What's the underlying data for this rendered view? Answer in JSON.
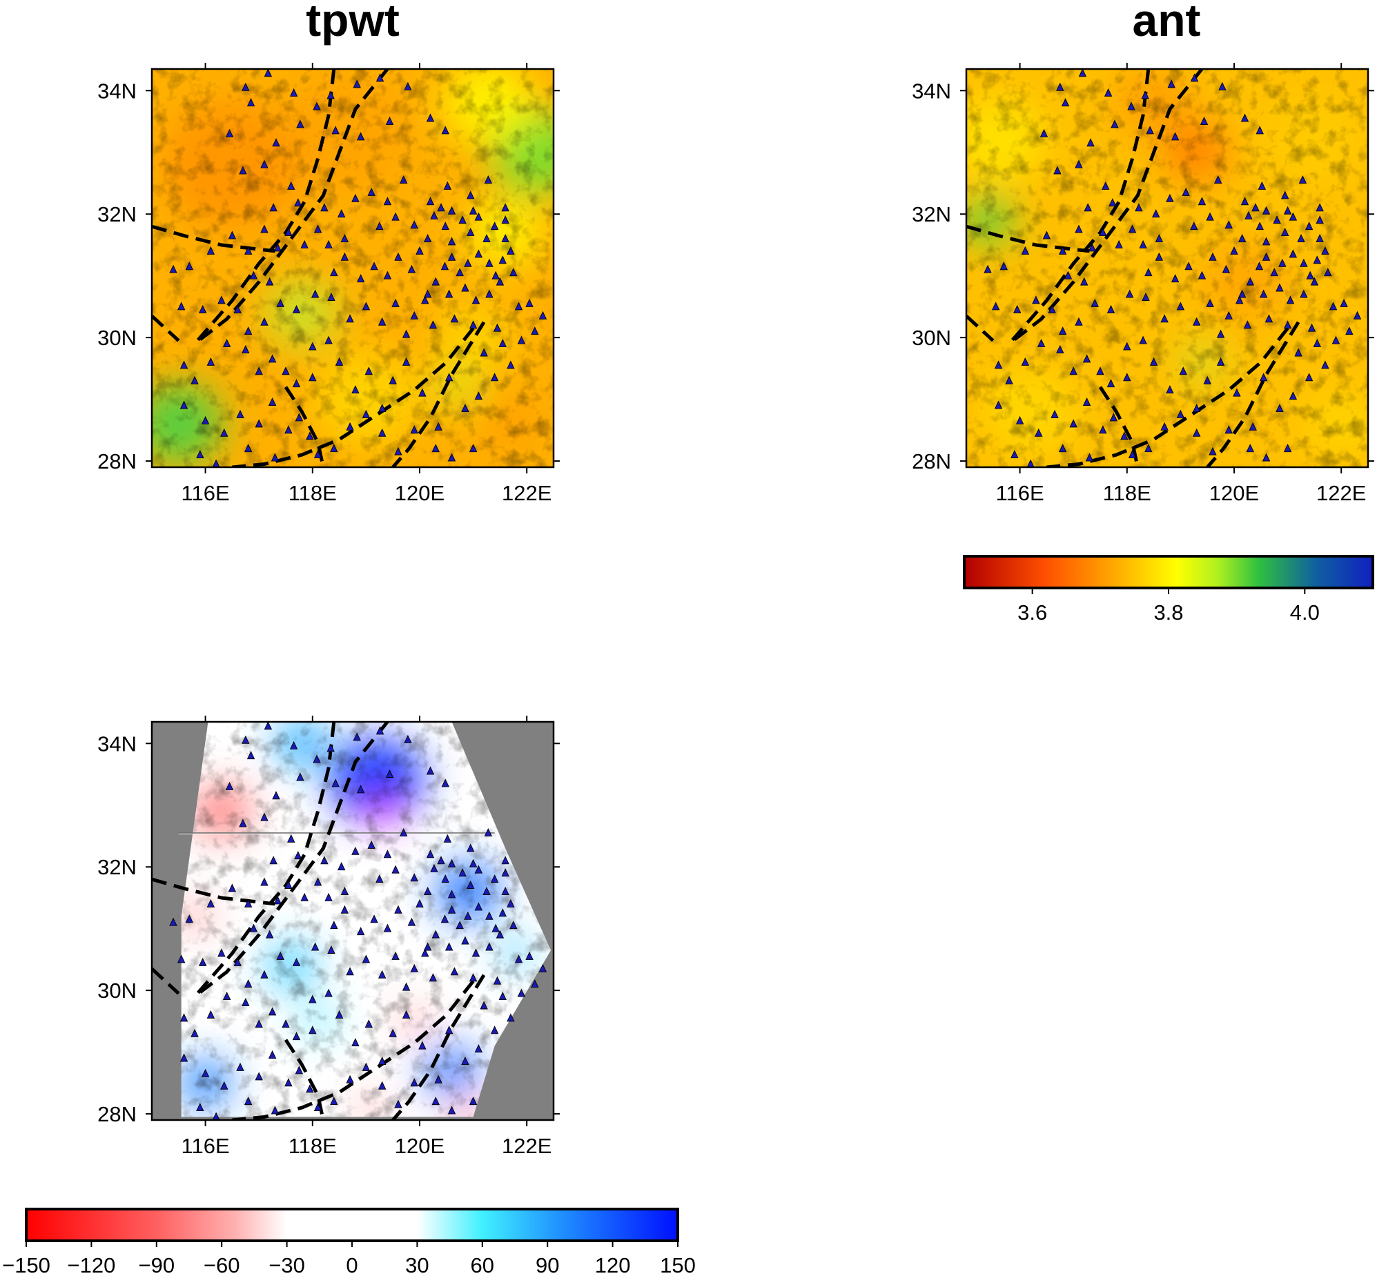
{
  "panels": [
    {
      "id": "tpwt",
      "title": "tpwt",
      "palette": "velocity",
      "background": "#ffb000",
      "blobs": [
        {
          "lon": 116.5,
          "lat": 32.8,
          "r": 2.4,
          "color": "#ff9000",
          "o": 0.8
        },
        {
          "lon": 118.6,
          "lat": 33.3,
          "r": 2.2,
          "color": "#ffa000",
          "o": 0.7
        },
        {
          "lon": 122.2,
          "lat": 33.0,
          "r": 1.6,
          "color": "#70e030",
          "o": 0.9
        },
        {
          "lon": 121.3,
          "lat": 33.8,
          "r": 1.6,
          "color": "#ffff00",
          "o": 0.8
        },
        {
          "lon": 121.6,
          "lat": 31.7,
          "r": 1.3,
          "color": "#ffff00",
          "o": 0.8
        },
        {
          "lon": 117.8,
          "lat": 30.4,
          "r": 1.3,
          "color": "#c0ea30",
          "o": 0.8
        },
        {
          "lon": 115.5,
          "lat": 28.6,
          "r": 1.5,
          "color": "#50d040",
          "o": 0.95
        },
        {
          "lon": 119.0,
          "lat": 29.0,
          "r": 1.8,
          "color": "#ffe000",
          "o": 0.7
        },
        {
          "lon": 121.0,
          "lat": 30.0,
          "r": 1.3,
          "color": "#ffe800",
          "o": 0.6
        },
        {
          "lon": 120.7,
          "lat": 29.2,
          "r": 0.9,
          "color": "#d8ee20",
          "o": 0.7
        },
        {
          "lon": 121.7,
          "lat": 28.6,
          "r": 1.0,
          "color": "#ff9a00",
          "o": 0.7
        }
      ]
    },
    {
      "id": "ant",
      "title": "ant",
      "palette": "velocity",
      "background": "#ffc000",
      "blobs": [
        {
          "lon": 119.3,
          "lat": 33.0,
          "r": 1.1,
          "color": "#ff7a00",
          "o": 0.9
        },
        {
          "lon": 118.5,
          "lat": 33.8,
          "r": 1.4,
          "color": "#ff9000",
          "o": 0.6
        },
        {
          "lon": 121.5,
          "lat": 33.2,
          "r": 1.8,
          "color": "#ffd000",
          "o": 0.6
        },
        {
          "lon": 115.6,
          "lat": 33.2,
          "r": 1.6,
          "color": "#ffee00",
          "o": 0.7
        },
        {
          "lon": 115.4,
          "lat": 31.9,
          "r": 0.9,
          "color": "#50d040",
          "o": 0.9
        },
        {
          "lon": 120.2,
          "lat": 30.9,
          "r": 1.5,
          "color": "#ff9a00",
          "o": 0.6
        },
        {
          "lon": 116.2,
          "lat": 28.8,
          "r": 1.6,
          "color": "#ffe400",
          "o": 0.6
        },
        {
          "lon": 119.4,
          "lat": 29.6,
          "r": 0.8,
          "color": "#c8e830",
          "o": 0.7
        },
        {
          "lon": 122.0,
          "lat": 28.6,
          "r": 1.3,
          "color": "#ffe000",
          "o": 0.6
        }
      ]
    },
    {
      "id": "diff",
      "title": "",
      "palette": "difference",
      "background": "#ffffff",
      "blobs": [
        {
          "lon": 117.8,
          "lat": 34.0,
          "r": 0.9,
          "color": "#20a8ff",
          "o": 0.9
        },
        {
          "lon": 119.2,
          "lat": 33.4,
          "r": 1.6,
          "color": "#2040ff",
          "o": 1.0
        },
        {
          "lon": 119.3,
          "lat": 32.9,
          "r": 0.45,
          "color": "#ff10ff",
          "o": 1.0
        },
        {
          "lon": 116.3,
          "lat": 32.9,
          "r": 1.0,
          "color": "#ff6060",
          "o": 0.8
        },
        {
          "lon": 115.8,
          "lat": 31.2,
          "r": 0.6,
          "color": "#ff7070",
          "o": 0.6
        },
        {
          "lon": 120.9,
          "lat": 31.6,
          "r": 1.1,
          "color": "#2070ff",
          "o": 0.9
        },
        {
          "lon": 121.8,
          "lat": 30.6,
          "r": 0.6,
          "color": "#40c8ff",
          "o": 0.8
        },
        {
          "lon": 117.6,
          "lat": 30.4,
          "r": 0.9,
          "color": "#30c8ff",
          "o": 0.8
        },
        {
          "lon": 118.1,
          "lat": 29.5,
          "r": 0.7,
          "color": "#50e8ff",
          "o": 0.6
        },
        {
          "lon": 116.0,
          "lat": 28.5,
          "r": 0.9,
          "color": "#2080ff",
          "o": 0.9
        },
        {
          "lon": 120.6,
          "lat": 28.7,
          "r": 1.0,
          "color": "#3070ff",
          "o": 0.8
        },
        {
          "lon": 119.9,
          "lat": 29.5,
          "r": 0.4,
          "color": "#ff5050",
          "o": 0.8
        },
        {
          "lon": 120.9,
          "lat": 28.0,
          "r": 0.5,
          "color": "#ff6060",
          "o": 0.7
        },
        {
          "lon": 119.1,
          "lat": 28.1,
          "r": 0.45,
          "color": "#ff6060",
          "o": 0.6
        }
      ],
      "mask": {
        "fill": "#808080",
        "polygon": [
          [
            115.55,
            27.95
          ],
          [
            115.55,
            31.2
          ],
          [
            116.05,
            34.35
          ],
          [
            120.6,
            34.35
          ],
          [
            121.6,
            32.3
          ],
          [
            122.45,
            30.65
          ],
          [
            121.4,
            29.1
          ],
          [
            121.0,
            27.95
          ]
        ]
      },
      "profile_line": {
        "lon1": 115.5,
        "lon2": 121.4,
        "lat": 32.55
      }
    }
  ],
  "map": {
    "lon_range": [
      115.0,
      122.5
    ],
    "lat_range": [
      27.9,
      34.35
    ],
    "x_ticks": [
      116,
      118,
      120,
      122
    ],
    "y_ticks": [
      28,
      30,
      32,
      34
    ],
    "x_tick_labels": [
      "116E",
      "118E",
      "120E",
      "122E"
    ],
    "y_tick_labels": [
      "28N",
      "30N",
      "32N",
      "34N"
    ]
  },
  "faults": [
    [
      [
        118.4,
        34.35
      ],
      [
        118.3,
        33.6
      ],
      [
        118.1,
        32.9
      ],
      [
        117.85,
        32.2
      ],
      [
        117.5,
        31.7
      ],
      [
        117.0,
        31.2
      ],
      [
        116.5,
        30.6
      ],
      [
        115.8,
        29.9
      ]
    ],
    [
      [
        119.4,
        34.35
      ],
      [
        118.8,
        33.7
      ],
      [
        118.5,
        33.0
      ],
      [
        118.2,
        32.3
      ],
      [
        117.6,
        31.6
      ],
      [
        117.0,
        30.9
      ],
      [
        116.4,
        30.3
      ],
      [
        115.8,
        29.9
      ]
    ],
    [
      [
        115.0,
        31.8
      ],
      [
        115.6,
        31.65
      ],
      [
        116.3,
        31.5
      ],
      [
        117.3,
        31.4
      ]
    ],
    [
      [
        115.0,
        30.35
      ],
      [
        115.5,
        29.95
      ]
    ],
    [
      [
        121.0,
        30.15
      ],
      [
        120.5,
        29.6
      ],
      [
        119.9,
        29.15
      ],
      [
        119.2,
        28.75
      ],
      [
        118.5,
        28.35
      ],
      [
        117.8,
        28.1
      ],
      [
        117.1,
        27.95
      ],
      [
        116.5,
        27.9
      ]
    ],
    [
      [
        121.2,
        30.25
      ],
      [
        120.6,
        29.4
      ],
      [
        120.2,
        28.7
      ],
      [
        119.8,
        28.2
      ],
      [
        119.5,
        27.9
      ]
    ],
    [
      [
        117.5,
        29.2
      ],
      [
        117.8,
        28.8
      ],
      [
        118.1,
        28.3
      ],
      [
        118.2,
        27.9
      ]
    ]
  ],
  "stations": [
    [
      117.17,
      34.28
    ],
    [
      116.75,
      34.05
    ],
    [
      116.85,
      33.8
    ],
    [
      117.65,
      33.96
    ],
    [
      118.08,
      33.74
    ],
    [
      118.34,
      33.92
    ],
    [
      118.83,
      34.1
    ],
    [
      119.26,
      34.2
    ],
    [
      119.78,
      34.06
    ],
    [
      120.2,
      33.55
    ],
    [
      120.48,
      33.35
    ],
    [
      119.44,
      33.5
    ],
    [
      118.9,
      33.25
    ],
    [
      118.43,
      33.35
    ],
    [
      117.77,
      33.45
    ],
    [
      117.32,
      33.15
    ],
    [
      116.45,
      33.3
    ],
    [
      116.7,
      32.7
    ],
    [
      117.1,
      32.8
    ],
    [
      117.6,
      32.45
    ],
    [
      117.27,
      32.1
    ],
    [
      117.73,
      32.18
    ],
    [
      118.22,
      32.1
    ],
    [
      118.54,
      32.0
    ],
    [
      118.8,
      32.25
    ],
    [
      119.1,
      32.35
    ],
    [
      119.4,
      32.2
    ],
    [
      119.7,
      32.55
    ],
    [
      120.2,
      32.2
    ],
    [
      120.52,
      32.45
    ],
    [
      120.95,
      32.3
    ],
    [
      121.28,
      32.55
    ],
    [
      119.25,
      31.8
    ],
    [
      119.55,
      31.95
    ],
    [
      119.9,
      31.82
    ],
    [
      120.27,
      31.97
    ],
    [
      120.48,
      31.8
    ],
    [
      120.6,
      31.55
    ],
    [
      120.8,
      31.9
    ],
    [
      120.95,
      31.7
    ],
    [
      121.1,
      31.95
    ],
    [
      121.25,
      31.6
    ],
    [
      121.4,
      31.8
    ],
    [
      121.6,
      31.6
    ],
    [
      121.55,
      31.25
    ],
    [
      121.42,
      31.0
    ],
    [
      121.3,
      31.2
    ],
    [
      121.1,
      31.35
    ],
    [
      120.9,
      31.2
    ],
    [
      120.75,
      31.05
    ],
    [
      120.6,
      31.3
    ],
    [
      120.47,
      31.15
    ],
    [
      120.3,
      30.9
    ],
    [
      120.15,
      30.7
    ],
    [
      120.55,
      30.7
    ],
    [
      120.85,
      30.8
    ],
    [
      121.05,
      30.6
    ],
    [
      121.3,
      30.7
    ],
    [
      121.5,
      30.9
    ],
    [
      121.75,
      31.05
    ],
    [
      121.6,
      31.9
    ],
    [
      121.6,
      32.1
    ],
    [
      121.0,
      32.05
    ],
    [
      120.6,
      32.05
    ],
    [
      120.4,
      32.1
    ],
    [
      120.15,
      31.6
    ],
    [
      120.0,
      31.4
    ],
    [
      119.85,
      31.1
    ],
    [
      119.6,
      31.3
    ],
    [
      119.4,
      31.0
    ],
    [
      119.15,
      31.15
    ],
    [
      118.9,
      30.95
    ],
    [
      118.6,
      31.3
    ],
    [
      118.4,
      31.05
    ],
    [
      118.3,
      31.5
    ],
    [
      118.6,
      31.6
    ],
    [
      118.1,
      31.75
    ],
    [
      117.85,
      31.5
    ],
    [
      117.55,
      31.7
    ],
    [
      117.35,
      31.45
    ],
    [
      117.1,
      31.75
    ],
    [
      116.8,
      31.4
    ],
    [
      116.5,
      31.65
    ],
    [
      116.1,
      31.4
    ],
    [
      115.7,
      31.15
    ],
    [
      115.55,
      30.5
    ],
    [
      115.95,
      30.45
    ],
    [
      116.3,
      30.6
    ],
    [
      116.6,
      30.45
    ],
    [
      116.8,
      30.1
    ],
    [
      117.1,
      30.25
    ],
    [
      117.4,
      30.55
    ],
    [
      117.7,
      30.45
    ],
    [
      118.05,
      30.7
    ],
    [
      118.35,
      30.65
    ],
    [
      118.7,
      30.3
    ],
    [
      119.0,
      30.5
    ],
    [
      119.3,
      30.25
    ],
    [
      119.55,
      30.55
    ],
    [
      119.9,
      30.35
    ],
    [
      120.25,
      30.2
    ],
    [
      120.65,
      30.3
    ],
    [
      121.0,
      30.2
    ],
    [
      121.45,
      30.15
    ],
    [
      121.9,
      29.95
    ],
    [
      122.15,
      30.1
    ],
    [
      122.3,
      30.35
    ],
    [
      122.05,
      30.55
    ],
    [
      121.7,
      29.55
    ],
    [
      121.4,
      29.35
    ],
    [
      121.1,
      29.05
    ],
    [
      120.85,
      28.85
    ],
    [
      120.55,
      29.35
    ],
    [
      120.35,
      28.55
    ],
    [
      120.05,
      29.1
    ],
    [
      119.75,
      29.6
    ],
    [
      119.5,
      29.3
    ],
    [
      119.3,
      28.85
    ],
    [
      119.05,
      29.45
    ],
    [
      118.8,
      29.15
    ],
    [
      118.5,
      29.6
    ],
    [
      118.3,
      29.95
    ],
    [
      118.0,
      29.85
    ],
    [
      117.7,
      29.25
    ],
    [
      117.5,
      29.45
    ],
    [
      117.25,
      29.65
    ],
    [
      117.0,
      29.45
    ],
    [
      116.75,
      29.8
    ],
    [
      116.4,
      29.9
    ],
    [
      116.1,
      29.6
    ],
    [
      115.8,
      29.3
    ],
    [
      115.6,
      28.9
    ],
    [
      116.0,
      28.65
    ],
    [
      116.35,
      28.45
    ],
    [
      116.65,
      28.75
    ],
    [
      117.0,
      28.6
    ],
    [
      117.25,
      28.95
    ],
    [
      117.55,
      28.5
    ],
    [
      117.75,
      28.7
    ],
    [
      117.95,
      28.4
    ],
    [
      118.1,
      28.1
    ],
    [
      118.4,
      28.2
    ],
    [
      118.7,
      28.55
    ],
    [
      119.0,
      28.75
    ],
    [
      119.3,
      28.45
    ],
    [
      119.6,
      28.15
    ],
    [
      119.9,
      28.5
    ],
    [
      120.3,
      28.2
    ],
    [
      120.6,
      28.05
    ],
    [
      121.0,
      28.2
    ],
    [
      115.9,
      28.1
    ],
    [
      116.2,
      27.95
    ],
    [
      116.8,
      28.2
    ],
    [
      117.3,
      28.05
    ],
    [
      121.55,
      29.9
    ],
    [
      121.2,
      29.75
    ],
    [
      120.1,
      30.6
    ],
    [
      119.75,
      30.05
    ],
    [
      121.85,
      30.5
    ],
    [
      121.7,
      31.4
    ],
    [
      118.0,
      29.35
    ],
    [
      117.2,
      30.9
    ],
    [
      116.9,
      31.0
    ],
    [
      115.4,
      31.1
    ],
    [
      115.6,
      29.55
    ]
  ],
  "colorbars": [
    {
      "id": "velocity",
      "min": 3.5,
      "max": 4.1,
      "ticks": [
        3.6,
        3.8,
        4.0
      ],
      "labels": [
        "3.6",
        "3.8",
        "4.0"
      ],
      "stops": [
        [
          0,
          "#b00000"
        ],
        [
          0.2,
          "#ff5000"
        ],
        [
          0.38,
          "#ffb000"
        ],
        [
          0.52,
          "#ffff00"
        ],
        [
          0.62,
          "#b0f020"
        ],
        [
          0.72,
          "#30c040"
        ],
        [
          0.86,
          "#1060a0"
        ],
        [
          1,
          "#1020c0"
        ]
      ]
    },
    {
      "id": "difference",
      "min": -150,
      "max": 150,
      "ticks": [
        -150,
        -120,
        -90,
        -60,
        -30,
        0,
        30,
        60,
        90,
        120,
        150
      ],
      "labels": [
        "−150",
        "−120",
        "−90",
        "−60",
        "−30",
        "0",
        "30",
        "60",
        "90",
        "120",
        "150"
      ],
      "stops": [
        [
          0,
          "#ff0000"
        ],
        [
          0.2,
          "#ff6060"
        ],
        [
          0.32,
          "#ffb0b0"
        ],
        [
          0.4,
          "#ffffff"
        ],
        [
          0.6,
          "#ffffff"
        ],
        [
          0.7,
          "#40f0ff"
        ],
        [
          0.82,
          "#2090ff"
        ],
        [
          1,
          "#0010ff"
        ]
      ]
    }
  ]
}
